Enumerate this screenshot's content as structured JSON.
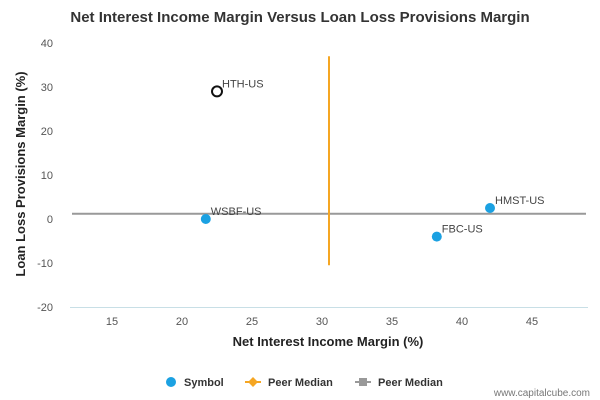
{
  "chart_data": {
    "type": "scatter",
    "title": "Net Interest Income Margin Versus Loan Loss Provisions Margin",
    "xlabel": "Net Interest Income Margin (%)",
    "ylabel": "Loan Loss Provisions Margin (%)",
    "xlim": [
      12,
      49
    ],
    "ylim": [
      -20,
      40
    ],
    "x_ticks": [
      15,
      20,
      25,
      30,
      35,
      40,
      45
    ],
    "y_ticks": [
      -20,
      -10,
      0,
      10,
      20,
      30,
      40
    ],
    "grid": false,
    "points": [
      {
        "label": "HTH-US",
        "x": 22.5,
        "y": 29,
        "highlighted": true
      },
      {
        "label": "WSBF-US",
        "x": 21.7,
        "y": 0,
        "highlighted": false
      },
      {
        "label": "HMST-US",
        "x": 42,
        "y": 2.5,
        "highlighted": false
      },
      {
        "label": "FBC-US",
        "x": 38.2,
        "y": -4,
        "highlighted": false
      }
    ],
    "peer_median_x": {
      "name": "Peer Median",
      "value": 30.5,
      "y_range": [
        -10.5,
        37
      ],
      "color": "#f5a623"
    },
    "peer_median_y": {
      "name": "Peer Median",
      "value": 1.2,
      "color": "#999999"
    },
    "legend": {
      "position": "bottom",
      "items": [
        {
          "label": "Symbol",
          "marker": "circle",
          "color": "#1ba1e2"
        },
        {
          "label": "Peer Median",
          "marker": "line-diamond",
          "color": "#f5a623"
        },
        {
          "label": "Peer Median",
          "marker": "line-square",
          "color": "#999999"
        }
      ]
    },
    "colors": {
      "point": "#1ba1e2",
      "highlight_stroke": "#111111",
      "baseline": "#c8dfe6"
    }
  },
  "credit": "www.capitalcube.com"
}
